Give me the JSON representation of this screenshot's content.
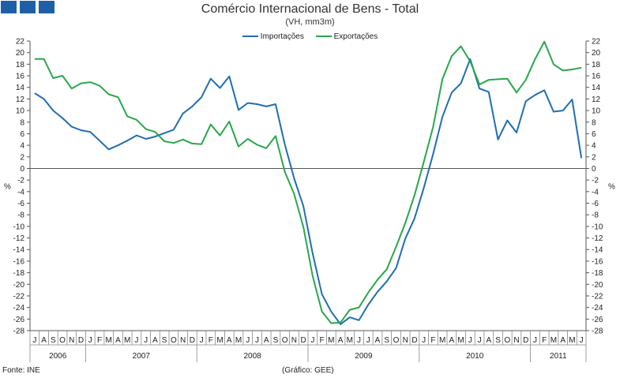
{
  "header": {
    "logo_tiles": 3,
    "logo_color": "#1f5fa8"
  },
  "footer": {
    "source": "Fonte: INE",
    "credit": "(Gráfico: GEE)"
  },
  "chart_data": {
    "type": "line",
    "title": "Comércio Internacional de Bens - Total",
    "subtitle": "(VH, mm3m)",
    "ylabel_left": "%",
    "ylabel_right": "%",
    "ylim": [
      -28,
      22
    ],
    "ytick_step": 2,
    "grid": false,
    "legend_position": "top-center",
    "x": [
      "J",
      "A",
      "S",
      "O",
      "N",
      "D",
      "J",
      "F",
      "M",
      "A",
      "M",
      "J",
      "J",
      "A",
      "S",
      "O",
      "N",
      "D",
      "J",
      "F",
      "M",
      "A",
      "M",
      "J",
      "J",
      "A",
      "S",
      "O",
      "N",
      "D",
      "J",
      "F",
      "M",
      "A",
      "M",
      "J",
      "J",
      "A",
      "S",
      "O",
      "N",
      "D",
      "J",
      "F",
      "M",
      "A",
      "M",
      "J",
      "J",
      "A",
      "S",
      "O",
      "N",
      "D",
      "J",
      "F",
      "M",
      "A",
      "M",
      "J"
    ],
    "years": [
      {
        "label": "2006",
        "from": 0,
        "to": 5
      },
      {
        "label": "2007",
        "from": 6,
        "to": 17
      },
      {
        "label": "2008",
        "from": 18,
        "to": 29
      },
      {
        "label": "2009",
        "from": 30,
        "to": 41
      },
      {
        "label": "2010",
        "from": 42,
        "to": 53
      },
      {
        "label": "2011",
        "from": 54,
        "to": 59
      }
    ],
    "series": [
      {
        "name": "Importações",
        "color": "#1f6eb4",
        "values": [
          13.0,
          12.0,
          10.0,
          8.7,
          7.2,
          6.6,
          6.3,
          4.8,
          3.3,
          4.0,
          4.8,
          5.7,
          5.1,
          5.5,
          6.1,
          6.7,
          9.5,
          10.7,
          12.3,
          15.5,
          13.9,
          15.9,
          10.1,
          11.3,
          11.1,
          10.7,
          11.1,
          4.1,
          -1.7,
          -6.5,
          -14.7,
          -21.7,
          -24.7,
          -26.9,
          -25.7,
          -26.2,
          -23.5,
          -21.3,
          -19.5,
          -17.2,
          -12.1,
          -8.6,
          -3.3,
          2.5,
          8.9,
          13.1,
          14.7,
          18.9,
          13.8,
          13.2,
          5.0,
          8.3,
          6.2,
          11.6,
          12.7,
          13.5,
          9.8,
          10.0,
          11.9,
          1.8
        ]
      },
      {
        "name": "Exportações",
        "color": "#2aa74a",
        "values": [
          18.9,
          18.9,
          15.6,
          16.0,
          13.8,
          14.7,
          14.9,
          14.3,
          12.8,
          12.3,
          9.0,
          8.4,
          6.8,
          6.3,
          4.7,
          4.4,
          5.0,
          4.3,
          4.2,
          7.6,
          5.7,
          8.1,
          3.8,
          5.1,
          4.1,
          3.5,
          5.6,
          -0.6,
          -4.4,
          -10.1,
          -18.6,
          -24.7,
          -26.7,
          -26.6,
          -24.4,
          -24.0,
          -21.4,
          -19.2,
          -17.4,
          -13.5,
          -9.4,
          -4.6,
          1.2,
          7.2,
          15.4,
          19.4,
          21.1,
          18.5,
          14.5,
          15.3,
          15.4,
          15.5,
          13.1,
          15.3,
          18.9,
          21.9,
          18.0,
          16.9,
          17.1,
          17.4
        ]
      }
    ]
  }
}
